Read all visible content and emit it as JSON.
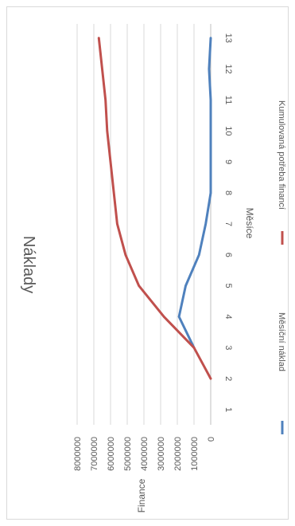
{
  "chart_data": {
    "type": "line",
    "title": "Náklady",
    "xlabel": "Měsíce",
    "ylabel": "Finance",
    "categories": [
      "1",
      "2",
      "3",
      "4",
      "5",
      "6",
      "7",
      "8",
      "9",
      "10",
      "11",
      "12",
      "13"
    ],
    "ylim": [
      0,
      8000000
    ],
    "y_ticks": [
      "0",
      "1000000",
      "2000000",
      "3000000",
      "4000000",
      "5000000",
      "6000000",
      "7000000",
      "8000000"
    ],
    "grid": true,
    "legend_position": "bottom",
    "orientation": "rotated 90 degrees clockwise",
    "series": [
      {
        "name": "Měsíční náklad",
        "color": "#4F81BD",
        "x": [
          3,
          4,
          5,
          6,
          7,
          8,
          9,
          10,
          11,
          12,
          13
        ],
        "values": [
          1000000,
          1900000,
          1500000,
          700000,
          300000,
          0,
          0,
          0,
          0,
          100000,
          0
        ]
      },
      {
        "name": "Kumulovaná potřeba financí",
        "color": "#C0504D",
        "x": [
          2,
          3,
          4,
          5,
          6,
          7,
          8,
          9,
          10,
          11,
          12,
          13
        ],
        "values": [
          0,
          1000000,
          2800000,
          4300000,
          5100000,
          5600000,
          5800000,
          6000000,
          6200000,
          6300000,
          6500000,
          6700000
        ]
      }
    ]
  }
}
